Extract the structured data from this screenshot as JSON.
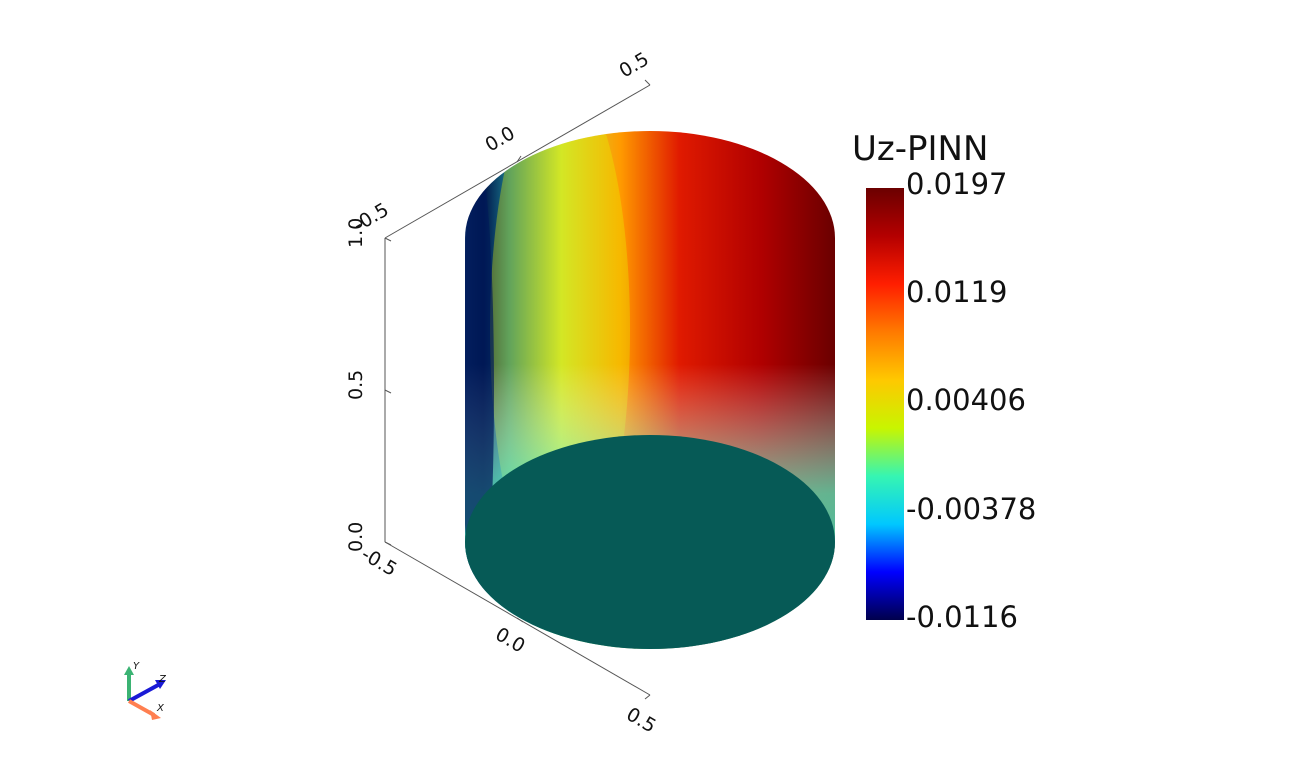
{
  "colorbar": {
    "title": "Uz-PINN",
    "labels": [
      "0.0197",
      "0.0119",
      "0.00406",
      "-0.00378",
      "-0.0116"
    ],
    "colormap": [
      "#00004c",
      "#0000ff",
      "#00c8ff",
      "#36f5b2",
      "#c8f500",
      "#ffc800",
      "#ff7a00",
      "#ff1e00",
      "#b40000",
      "#6b0000"
    ]
  },
  "axes": {
    "vertical_ticks": [
      "1.0",
      "0.5",
      "0.0"
    ],
    "top_edge_ticks": [
      "-0.5",
      "0.0",
      "0.5"
    ],
    "bottom_edge_ticks": [
      "-0.5",
      "0.0",
      "0.5"
    ]
  },
  "orientation_triad": {
    "labels": [
      "Y",
      "Z",
      "X"
    ],
    "colors": [
      "#3bb373",
      "#1a1ad6",
      "#ff7f50"
    ]
  },
  "bottom_face_color": "#065a56"
}
